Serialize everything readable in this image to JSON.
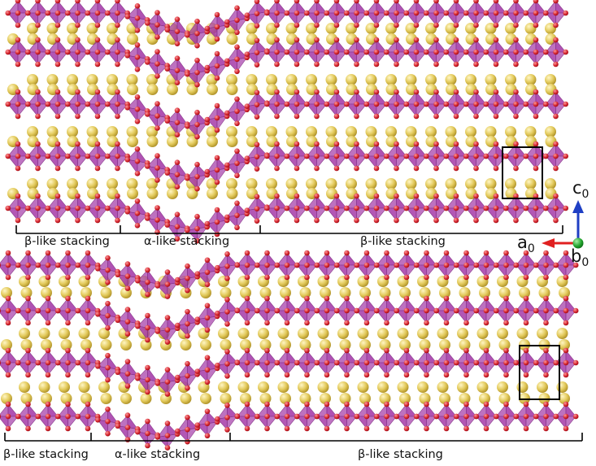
{
  "panels": [
    {
      "segments": [
        {
          "label": "β-like stacking",
          "stacking": "beta"
        },
        {
          "label": "α-like stacking",
          "stacking": "alpha"
        },
        {
          "label": "β-like stacking",
          "stacking": "beta"
        }
      ]
    },
    {
      "segments": [
        {
          "label": "β-like stacking",
          "stacking": "beta"
        },
        {
          "label": "α-like stacking",
          "stacking": "alpha"
        },
        {
          "label": "β-like stacking",
          "stacking": "beta"
        }
      ]
    }
  ],
  "axes": {
    "c": {
      "letter": "c",
      "sub": "0",
      "color": "#1f3fc4"
    },
    "a": {
      "letter": "a",
      "sub": "0",
      "color": "#e02020"
    },
    "b": {
      "letter": "b",
      "sub": "0",
      "color": "#1fa12a"
    }
  },
  "colors": {
    "octahedron": "#a43aa8",
    "octahedron_edge": "#7d2a80",
    "oxygen": "#d0202a",
    "cation": "#e2c95a",
    "cell_box": "#000000"
  }
}
